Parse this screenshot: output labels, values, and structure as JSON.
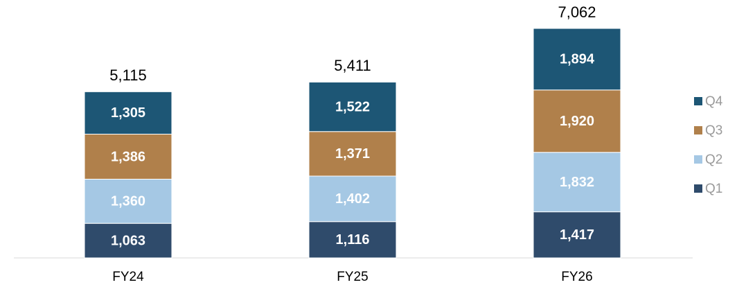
{
  "chart_data": {
    "type": "stacked_bar",
    "categories": [
      "FY24",
      "FY25",
      "FY26"
    ],
    "series": [
      {
        "name": "Q1",
        "color": "#2f4b6b",
        "values": [
          1063,
          1116,
          1417
        ],
        "value_labels": [
          "1,063",
          "1,116",
          "1,417"
        ]
      },
      {
        "name": "Q2",
        "color": "#a5c8e4",
        "values": [
          1360,
          1402,
          1832
        ],
        "value_labels": [
          "1,360",
          "1,402",
          "1,832"
        ]
      },
      {
        "name": "Q3",
        "color": "#b0804b",
        "values": [
          1386,
          1371,
          1920
        ],
        "value_labels": [
          "1,386",
          "1,371",
          "1,920"
        ]
      },
      {
        "name": "Q4",
        "color": "#1d5675",
        "values": [
          1305,
          1522,
          1894
        ],
        "value_labels": [
          "1,305",
          "1,522",
          "1,894"
        ]
      }
    ],
    "totals": {
      "values": [
        5115,
        5411,
        7062
      ],
      "labels": [
        "5,115",
        "5,411",
        "7,062"
      ]
    },
    "legend": "right"
  }
}
